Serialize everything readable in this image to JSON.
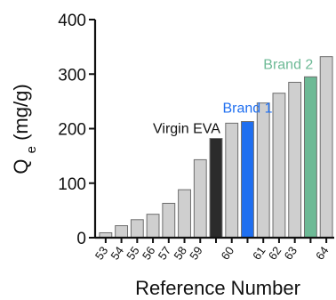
{
  "chart_data": {
    "type": "bar",
    "xlabel": "Reference Number",
    "ylabel_main": "Q",
    "ylabel_sub": "e",
    "ylabel_unit": " (mg/g)",
    "ylim": [
      0,
      400
    ],
    "yticks": [
      0,
      100,
      200,
      300,
      400
    ],
    "grid": false,
    "bars": [
      {
        "label": "53",
        "value": 9,
        "color": "#cfcfcf"
      },
      {
        "label": "54",
        "value": 22,
        "color": "#cfcfcf"
      },
      {
        "label": "55",
        "value": 33,
        "color": "#cfcfcf"
      },
      {
        "label": "56",
        "value": 43,
        "color": "#cfcfcf"
      },
      {
        "label": "57",
        "value": 63,
        "color": "#cfcfcf"
      },
      {
        "label": "58",
        "value": 88,
        "color": "#cfcfcf"
      },
      {
        "label": "59",
        "value": 143,
        "color": "#cfcfcf"
      },
      {
        "label": "",
        "value": 182,
        "color": "#2b2b2b"
      },
      {
        "label": "60",
        "value": 210,
        "color": "#cfcfcf"
      },
      {
        "label": "",
        "value": 213,
        "color": "#1f6ff0"
      },
      {
        "label": "61",
        "value": 247,
        "color": "#cfcfcf"
      },
      {
        "label": "62",
        "value": 265,
        "color": "#cfcfcf"
      },
      {
        "label": "63",
        "value": 285,
        "color": "#cfcfcf"
      },
      {
        "label": "",
        "value": 295,
        "color": "#6dba96"
      },
      {
        "label": "64",
        "value": 332,
        "color": "#cfcfcf"
      }
    ],
    "annotations": [
      {
        "text": "Virgin EVA",
        "bar": 7,
        "color": "#111111"
      },
      {
        "text": "Brand 1",
        "bar": 9,
        "color": "#1f6ff0"
      },
      {
        "text": "Brand 2",
        "bar": 13,
        "color": "#6dba96"
      }
    ]
  }
}
